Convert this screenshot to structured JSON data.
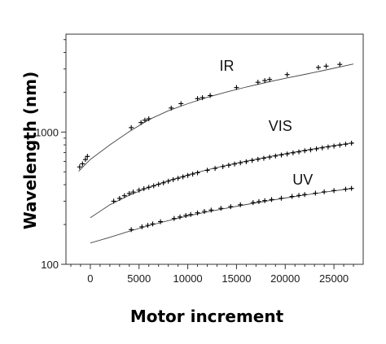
{
  "chart_data": {
    "type": "scatter",
    "title": "",
    "xlabel": "Motor increment",
    "ylabel": "Wavelength (nm)",
    "xlim": [
      -2500,
      28000
    ],
    "ylim": [
      100,
      5500
    ],
    "y_scale": "log",
    "x_ticks": [
      0,
      5000,
      10000,
      15000,
      20000,
      25000
    ],
    "x_tick_labels": [
      "0",
      "5000",
      "10000",
      "15000",
      "20000",
      "25000"
    ],
    "y_ticks": [
      100,
      1000
    ],
    "y_tick_labels": [
      "100",
      "1000"
    ],
    "grid": false,
    "legend": "none",
    "series": [
      {
        "name": "IR",
        "marker": "+",
        "fit_curve": [
          [
            -1200,
            505
          ],
          [
            0,
            620
          ],
          [
            2000,
            800
          ],
          [
            4000,
            1010
          ],
          [
            6000,
            1240
          ],
          [
            8000,
            1450
          ],
          [
            10000,
            1640
          ],
          [
            12000,
            1830
          ],
          [
            14000,
            2010
          ],
          [
            16000,
            2190
          ],
          [
            18000,
            2370
          ],
          [
            20000,
            2550
          ],
          [
            22000,
            2730
          ],
          [
            24000,
            2930
          ],
          [
            27000,
            3270
          ]
        ],
        "points": [
          [
            -1100,
            545
          ],
          [
            -800,
            575
          ],
          [
            -500,
            620
          ],
          [
            -300,
            655
          ],
          [
            4200,
            1080
          ],
          [
            5200,
            1180
          ],
          [
            5600,
            1230
          ],
          [
            6000,
            1260
          ],
          [
            8300,
            1520
          ],
          [
            9300,
            1640
          ],
          [
            11000,
            1790
          ],
          [
            11500,
            1820
          ],
          [
            12300,
            1890
          ],
          [
            15000,
            2170
          ],
          [
            17200,
            2380
          ],
          [
            17900,
            2450
          ],
          [
            18400,
            2500
          ],
          [
            20200,
            2720
          ],
          [
            23400,
            3080
          ],
          [
            24200,
            3150
          ],
          [
            25600,
            3250
          ]
        ]
      },
      {
        "name": "VIS",
        "marker": "+",
        "fit_curve": [
          [
            0,
            225
          ],
          [
            2000,
            282
          ],
          [
            4000,
            333
          ],
          [
            6000,
            381
          ],
          [
            8000,
            428
          ],
          [
            10000,
            474
          ],
          [
            12000,
            518
          ],
          [
            14000,
            561
          ],
          [
            16000,
            603
          ],
          [
            18000,
            645
          ],
          [
            20000,
            687
          ],
          [
            22000,
            728
          ],
          [
            24000,
            770
          ],
          [
            27000,
            832
          ]
        ],
        "points": [
          [
            2400,
            300
          ],
          [
            3000,
            315
          ],
          [
            3500,
            330
          ],
          [
            4000,
            343
          ],
          [
            4400,
            352
          ],
          [
            5000,
            364
          ],
          [
            5500,
            373
          ],
          [
            6000,
            382
          ],
          [
            6500,
            392
          ],
          [
            7000,
            403
          ],
          [
            7500,
            413
          ],
          [
            8000,
            425
          ],
          [
            8500,
            437
          ],
          [
            9000,
            447
          ],
          [
            9500,
            458
          ],
          [
            10000,
            470
          ],
          [
            10500,
            481
          ],
          [
            11000,
            492
          ],
          [
            12000,
            514
          ],
          [
            12800,
            531
          ],
          [
            13600,
            548
          ],
          [
            14200,
            561
          ],
          [
            14800,
            573
          ],
          [
            15400,
            585
          ],
          [
            16000,
            597
          ],
          [
            16600,
            610
          ],
          [
            17200,
            622
          ],
          [
            17800,
            634
          ],
          [
            18400,
            646
          ],
          [
            19000,
            659
          ],
          [
            19600,
            671
          ],
          [
            20200,
            683
          ],
          [
            20800,
            696
          ],
          [
            21400,
            708
          ],
          [
            22000,
            722
          ],
          [
            22600,
            734
          ],
          [
            23200,
            746
          ],
          [
            23800,
            759
          ],
          [
            24400,
            771
          ],
          [
            25000,
            784
          ],
          [
            25600,
            797
          ],
          [
            26200,
            810
          ],
          [
            26800,
            824
          ]
        ]
      },
      {
        "name": "UV",
        "marker": "+",
        "fit_curve": [
          [
            0,
            145
          ],
          [
            2000,
            160
          ],
          [
            4000,
            178
          ],
          [
            6000,
            196
          ],
          [
            8000,
            214
          ],
          [
            10000,
            232
          ],
          [
            12000,
            249
          ],
          [
            14000,
            266
          ],
          [
            16000,
            283
          ],
          [
            18000,
            300
          ],
          [
            20000,
            317
          ],
          [
            22000,
            334
          ],
          [
            24000,
            351
          ],
          [
            27000,
            376
          ]
        ],
        "points": [
          [
            4200,
            183
          ],
          [
            5300,
            192
          ],
          [
            5900,
            197
          ],
          [
            6400,
            202
          ],
          [
            7200,
            210
          ],
          [
            8600,
            222
          ],
          [
            9200,
            228
          ],
          [
            9800,
            234
          ],
          [
            10300,
            238
          ],
          [
            11000,
            245
          ],
          [
            11700,
            251
          ],
          [
            12400,
            257
          ],
          [
            13400,
            265
          ],
          [
            14400,
            273
          ],
          [
            15400,
            282
          ],
          [
            16700,
            293
          ],
          [
            17300,
            298
          ],
          [
            17900,
            303
          ],
          [
            18600,
            309
          ],
          [
            19600,
            316
          ],
          [
            20700,
            326
          ],
          [
            21400,
            332
          ],
          [
            22000,
            337
          ],
          [
            23100,
            345
          ],
          [
            24000,
            353
          ],
          [
            25000,
            361
          ],
          [
            26200,
            370
          ],
          [
            26800,
            375
          ]
        ]
      }
    ],
    "annotations": [
      {
        "text": "IR",
        "x": 14000,
        "y": 2900
      },
      {
        "text": "VIS",
        "x": 19500,
        "y": 1020
      },
      {
        "text": "UV",
        "x": 21800,
        "y": 400
      }
    ]
  }
}
